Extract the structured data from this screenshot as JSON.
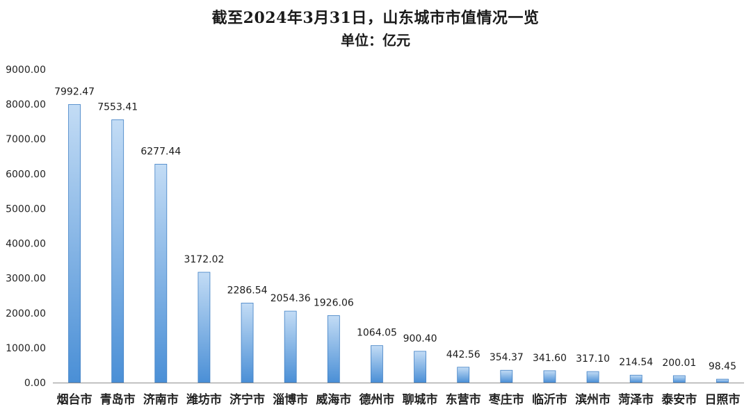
{
  "chart_data": {
    "type": "bar",
    "title": "截至2024年3月31日，山东城市市值情况一览",
    "subtitle": "单位：亿元",
    "xlabel": "",
    "ylabel": "",
    "ylim": [
      0,
      9000
    ],
    "y_ticks": [
      "0.00",
      "1000.00",
      "2000.00",
      "3000.00",
      "4000.00",
      "5000.00",
      "6000.00",
      "7000.00",
      "8000.00",
      "9000.00"
    ],
    "categories": [
      "烟台市",
      "青岛市",
      "济南市",
      "潍坊市",
      "济宁市",
      "淄博市",
      "威海市",
      "德州市",
      "聊城市",
      "东营市",
      "枣庄市",
      "临沂市",
      "滨州市",
      "菏泽市",
      "泰安市",
      "日照市"
    ],
    "values": [
      7992.47,
      7553.41,
      6277.44,
      3172.02,
      2286.54,
      2054.36,
      1926.06,
      1064.05,
      900.4,
      442.56,
      354.37,
      341.6,
      317.1,
      214.54,
      200.01,
      98.45
    ],
    "data_labels": [
      "7992.47",
      "7553.41",
      "6277.44",
      "3172.02",
      "2286.54",
      "2054.36",
      "1926.06",
      "1064.05",
      "900.40",
      "442.56",
      "354.37",
      "341.60",
      "317.10",
      "214.54",
      "200.01",
      "98.45"
    ],
    "grid": false,
    "legend": "none",
    "colors": {
      "bar_top": "#c3dcf5",
      "bar_bottom": "#4a8fd6",
      "bar_stroke": "#3f7fc4",
      "axis": "#8c8c8c"
    }
  }
}
